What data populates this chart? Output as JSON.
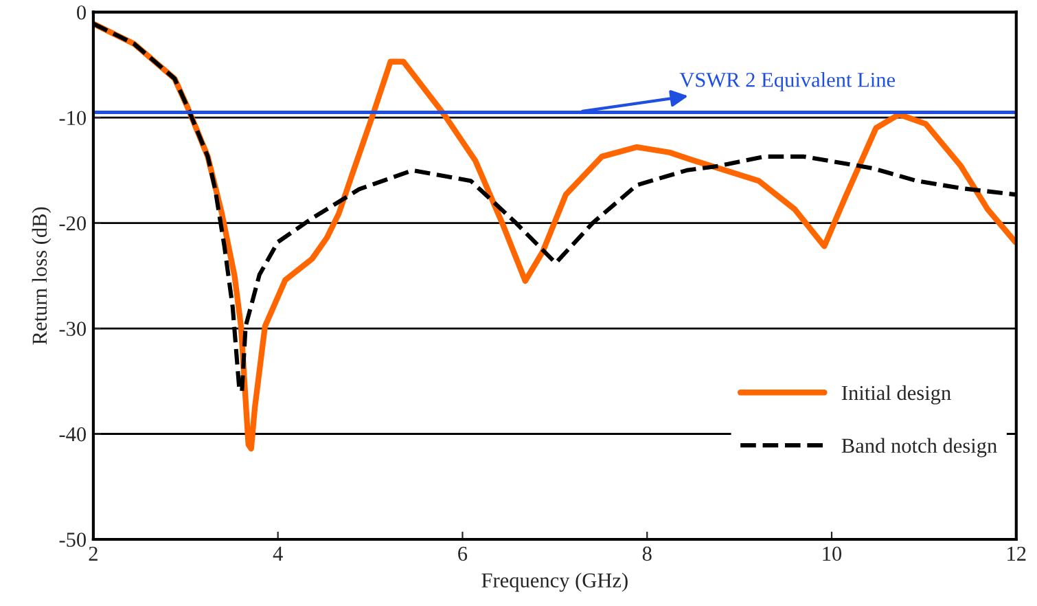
{
  "chart_data": {
    "type": "line",
    "xlabel": "Frequency (GHz)",
    "ylabel": "Return loss (dB)",
    "xlim": [
      2,
      12
    ],
    "ylim": [
      -50,
      0
    ],
    "xticks": [
      2,
      4,
      6,
      8,
      10,
      12
    ],
    "yticks": [
      -50,
      -40,
      -30,
      -20,
      -10,
      0
    ],
    "grid": "y",
    "legend": "bottom right",
    "ref_lines": [
      {
        "axis": "y",
        "value": -9.5,
        "label": "VSWR 2 Equivalent Line",
        "color": "#1f4fe0"
      }
    ],
    "series": [
      {
        "name": "Initial design",
        "color": "#ff6600",
        "line_style": "solid",
        "x": [
          2.0,
          2.44,
          2.88,
          3.02,
          3.24,
          3.39,
          3.53,
          3.6,
          3.68,
          3.71,
          3.75,
          3.86,
          4.08,
          4.37,
          4.53,
          4.66,
          4.82,
          5.03,
          5.22,
          5.36,
          5.8,
          6.14,
          6.43,
          6.68,
          6.87,
          7.12,
          7.51,
          7.89,
          8.24,
          8.48,
          9.21,
          9.6,
          9.92,
          10.14,
          10.48,
          10.73,
          11.02,
          11.4,
          11.69,
          11.99
        ],
        "values": [
          -1.1,
          -3,
          -6.3,
          -9,
          -13.7,
          -19,
          -25,
          -29.8,
          -41,
          -41.4,
          -37.5,
          -29.8,
          -25.4,
          -23.4,
          -21.4,
          -19.1,
          -15,
          -9.7,
          -4.7,
          -4.7,
          -9.7,
          -14.1,
          -20,
          -25.5,
          -22.7,
          -17.3,
          -13.7,
          -12.8,
          -13.3,
          -14,
          -16,
          -18.7,
          -22.2,
          -17.7,
          -11,
          -9.7,
          -10.6,
          -14.6,
          -18.7,
          -21.8
        ]
      },
      {
        "name": "Band notch design",
        "color": "#000000",
        "line_style": "dashed",
        "x": [
          2.0,
          2.44,
          2.88,
          3.02,
          3.24,
          3.32,
          3.42,
          3.51,
          3.58,
          3.61,
          3.65,
          3.8,
          4.0,
          4.38,
          4.88,
          5.46,
          6.09,
          6.58,
          7.01,
          7.41,
          7.89,
          8.43,
          8.77,
          9.27,
          9.7,
          10.44,
          10.92,
          11.4,
          11.99
        ],
        "values": [
          -1.1,
          -3,
          -6.3,
          -9,
          -13.7,
          -16.8,
          -22.2,
          -28,
          -35.6,
          -36,
          -29.8,
          -24.9,
          -21.8,
          -19.5,
          -16.8,
          -15,
          -16,
          -20,
          -23.8,
          -20,
          -16.4,
          -15,
          -14.6,
          -13.7,
          -13.7,
          -14.8,
          -16,
          -16.7,
          -17.3
        ]
      }
    ]
  }
}
